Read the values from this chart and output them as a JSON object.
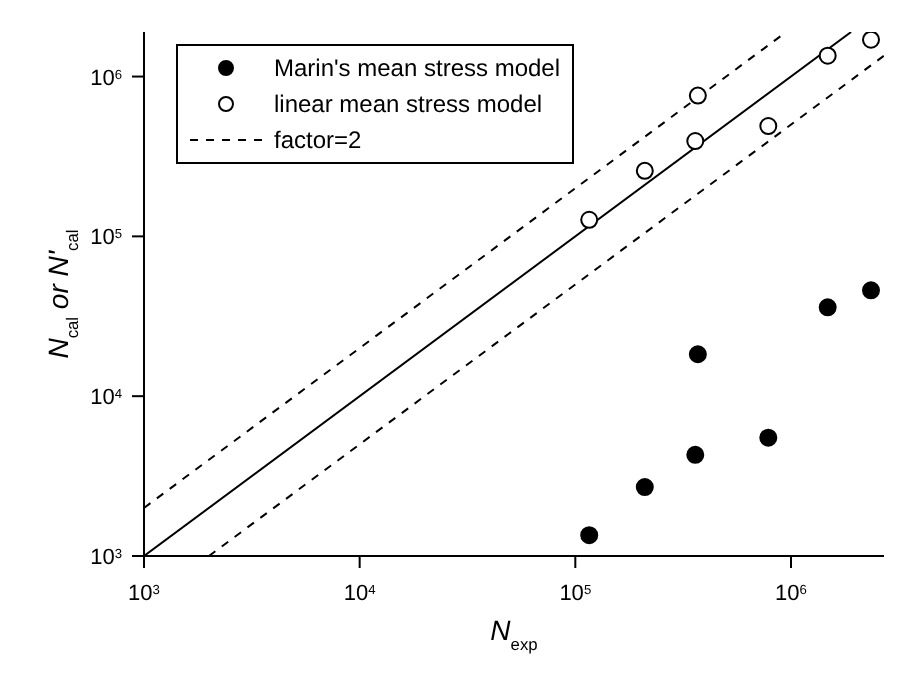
{
  "chart_data": {
    "type": "scatter",
    "xlabel": "N$_{exp}$",
    "ylabel": "N$_{cal}$ or N'$_{cal}$",
    "log": "xy",
    "grid": false,
    "legend": "top left",
    "marker": "circle",
    "xlim": [
      1000,
      2700000
    ],
    "ylim": [
      1000,
      1900000
    ],
    "xticks": [
      {
        "value": 1000,
        "label": "10$^{3}$"
      },
      {
        "value": 10000,
        "label": "10$^{4}$"
      },
      {
        "value": 100000,
        "label": "10$^{5}$"
      },
      {
        "value": 1000000,
        "label": "10$^{6}$"
      }
    ],
    "yticks": [
      {
        "value": 1000,
        "label": "10$^{3}$"
      },
      {
        "value": 10000,
        "label": "10$^{4}$"
      },
      {
        "value": 100000,
        "label": "10$^{5}$"
      },
      {
        "value": 1000000,
        "label": "10$^{6}$"
      }
    ],
    "series": [
      {
        "name": "Marin's mean stress model",
        "color": "#000000",
        "x": [
          116000,
          210000,
          360000,
          370000,
          785000,
          1480000,
          2350000
        ],
        "values": [
          1350,
          2700,
          4300,
          18300,
          5500,
          36000,
          46000
        ]
      },
      {
        "name": "linear mean stress model",
        "color": "#000000",
        "x": [
          116000,
          210000,
          360000,
          370000,
          785000,
          1480000,
          2350000
        ],
        "values": [
          127000,
          257000,
          395000,
          760000,
          490000,
          1350000,
          1700000
        ]
      },
      {
        "type": "line",
        "color": "#000000",
        "line_style": "solid",
        "marker": "none",
        "x": [
          1000,
          1900000
        ],
        "values": [
          1000,
          1900000
        ]
      },
      {
        "name": "factor=2",
        "type": "line",
        "color": "#000000",
        "line_style": "dashed",
        "marker": "none",
        "x": [
          1000,
          950000
        ],
        "values": [
          2000,
          1900000
        ]
      },
      {
        "type": "line",
        "color": "#000000",
        "line_style": "dashed",
        "marker": "none",
        "x": [
          2000,
          2700000
        ],
        "values": [
          1000,
          1350000
        ]
      }
    ]
  }
}
